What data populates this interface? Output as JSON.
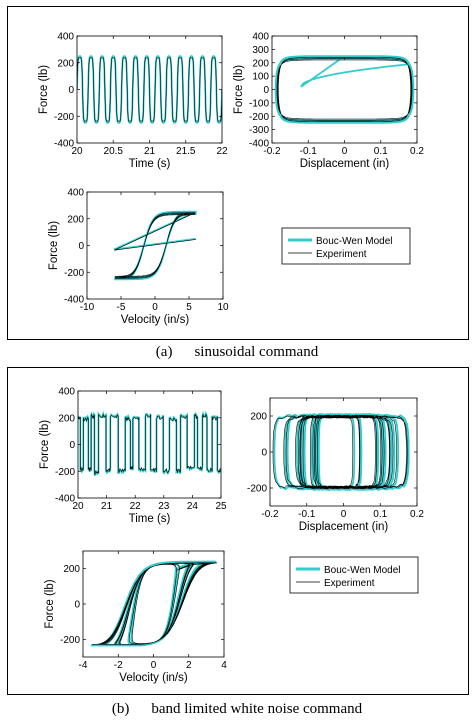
{
  "captions": {
    "a": {
      "letter": "(a)",
      "text": "sinusoidal command"
    },
    "b": {
      "letter": "(b)",
      "text": "band limited white noise command"
    }
  },
  "colors": {
    "model": "#33cccc",
    "experiment": "#000000"
  },
  "legend": {
    "model_label": "Bouc-Wen Model",
    "experiment_label": "Experiment"
  },
  "chart_data": [
    {
      "id": "a1",
      "type": "line",
      "xlabel": "Time (s)",
      "ylabel": "Force (lb)",
      "xlim": [
        20,
        22
      ],
      "ylim": [
        -400,
        400
      ],
      "xticks": [
        20,
        20.5,
        21,
        21.5,
        22
      ],
      "yticks": [
        -400,
        -200,
        0,
        200,
        400
      ],
      "signal": {
        "kind": "sine_time",
        "frequency_hz": 6.5,
        "force_amplitude_lb": 250
      },
      "series": [
        {
          "name": "Bouc-Wen Model"
        },
        {
          "name": "Experiment"
        }
      ]
    },
    {
      "id": "a2",
      "type": "line",
      "xlabel": "Displacement (in)",
      "ylabel": "Force (lb)",
      "xlim": [
        -0.2,
        0.2
      ],
      "ylim": [
        -400,
        400
      ],
      "xticks": [
        -0.2,
        -0.1,
        0,
        0.1,
        0.2
      ],
      "yticks": [
        -400,
        -300,
        -200,
        -100,
        0,
        100,
        200,
        300,
        400
      ],
      "signal": {
        "kind": "hysteresis_displacement",
        "displacement_amplitude_in": 0.19,
        "force_amplitude_lb": 250
      },
      "series": [
        {
          "name": "Bouc-Wen Model"
        },
        {
          "name": "Experiment"
        }
      ]
    },
    {
      "id": "a3",
      "type": "line",
      "xlabel": "Velocity (in/s)",
      "ylabel": "Force (lb)",
      "xlim": [
        -10,
        10
      ],
      "ylim": [
        -400,
        400
      ],
      "xticks": [
        -10,
        -5,
        0,
        5,
        10
      ],
      "yticks": [
        -400,
        -200,
        0,
        200,
        400
      ],
      "signal": {
        "kind": "hysteresis_velocity",
        "velocity_amplitude_in_s": 6,
        "force_amplitude_lb": 250
      },
      "series": [
        {
          "name": "Bouc-Wen Model"
        },
        {
          "name": "Experiment"
        }
      ]
    },
    {
      "id": "b1",
      "type": "line",
      "xlabel": "Time (s)",
      "ylabel": "Force (lb)",
      "xlim": [
        20,
        25
      ],
      "ylim": [
        -400,
        400
      ],
      "xticks": [
        20,
        21,
        22,
        23,
        24,
        25
      ],
      "yticks": [
        -400,
        -200,
        0,
        200,
        400
      ],
      "signal": {
        "kind": "noise_time",
        "force_amplitude_lb": 210
      },
      "series": [
        {
          "name": "Bouc-Wen Model"
        },
        {
          "name": "Experiment"
        }
      ]
    },
    {
      "id": "b2",
      "type": "line",
      "xlabel": "Displacement (in)",
      "ylabel": "",
      "xlim": [
        -0.2,
        0.2
      ],
      "ylim": [
        -300,
        300
      ],
      "xticks": [
        -0.2,
        -0.1,
        0,
        0.1,
        0.2
      ],
      "yticks": [
        -200,
        0,
        200
      ],
      "signal": {
        "kind": "noise_displacement",
        "displacement_amplitude_in": 0.165,
        "force_amplitude_lb": 220
      },
      "series": [
        {
          "name": "Bouc-Wen Model"
        },
        {
          "name": "Experiment"
        }
      ]
    },
    {
      "id": "b3",
      "type": "line",
      "xlabel": "Velocity (in/s)",
      "ylabel": "Force (lb)",
      "xlim": [
        -4,
        4
      ],
      "ylim": [
        -300,
        300
      ],
      "xticks": [
        -4,
        -2,
        0,
        2,
        4
      ],
      "yticks": [
        -200,
        0,
        200
      ],
      "signal": {
        "kind": "noise_velocity",
        "velocity_amplitude_in_s": 3.6,
        "force_amplitude_lb": 240
      },
      "series": [
        {
          "name": "Bouc-Wen Model"
        },
        {
          "name": "Experiment"
        }
      ]
    }
  ]
}
